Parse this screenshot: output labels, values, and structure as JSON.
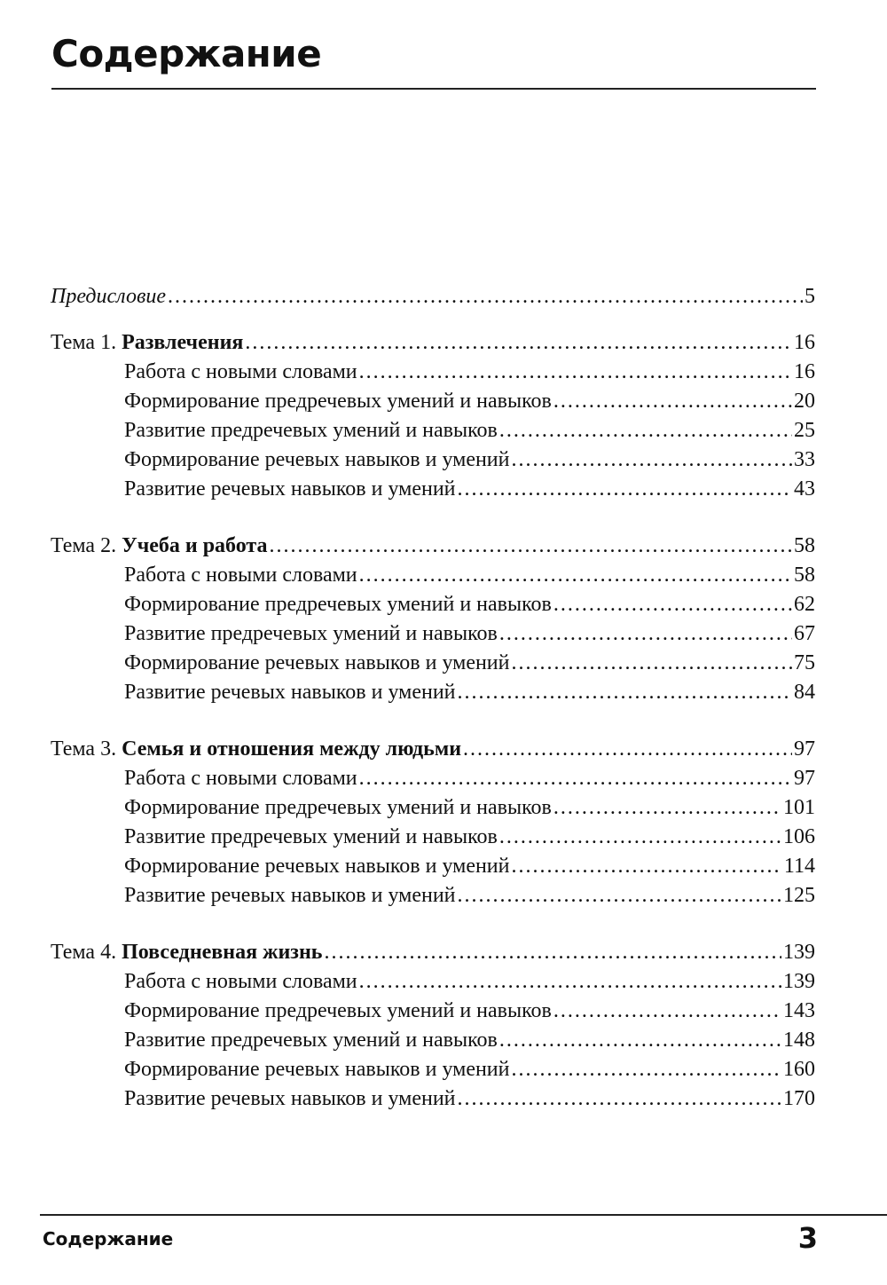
{
  "header": {
    "title": "Содержание"
  },
  "preface": {
    "label": "Предисловие",
    "page": "5"
  },
  "topics": [
    {
      "prefix": "Тема 1. ",
      "title": "Развлечения",
      "page": "16",
      "sections": [
        {
          "label": "Работа с новыми словами",
          "page": "16"
        },
        {
          "label": "Формирование предречевых умений и навыков",
          "page": "20"
        },
        {
          "label": "Развитие предречевых умений и навыков",
          "page": "25"
        },
        {
          "label": "Формирование речевых навыков и умений",
          "page": "33"
        },
        {
          "label": "Развитие речевых навыков и умений",
          "page": "43"
        }
      ]
    },
    {
      "prefix": "Тема 2. ",
      "title": "Учеба и работа",
      "page": "58",
      "sections": [
        {
          "label": "Работа с новыми словами",
          "page": "58"
        },
        {
          "label": "Формирование предречевых умений и навыков",
          "page": "62"
        },
        {
          "label": "Развитие предречевых умений и навыков",
          "page": "67"
        },
        {
          "label": "Формирование речевых навыков и умений",
          "page": "75"
        },
        {
          "label": "Развитие речевых навыков и умений",
          "page": "84"
        }
      ]
    },
    {
      "prefix": "Тема 3. ",
      "title": "Семья и отношения между людьми",
      "page": "97",
      "sections": [
        {
          "label": "Работа с новыми словами",
          "page": "97"
        },
        {
          "label": "Формирование предречевых умений и навыков",
          "page": "101"
        },
        {
          "label": "Развитие предречевых умений и навыков",
          "page": "106"
        },
        {
          "label": "Формирование речевых навыков и умений",
          "page": "114"
        },
        {
          "label": "Развитие речевых навыков и умений",
          "page": "125"
        }
      ]
    },
    {
      "prefix": "Тема 4. ",
      "title": "Повседневная жизнь",
      "page": "139",
      "sections": [
        {
          "label": "Работа с новыми словами",
          "page": "139"
        },
        {
          "label": "Формирование предречевых умений и навыков",
          "page": "143"
        },
        {
          "label": "Развитие предречевых умений и навыков",
          "page": "148"
        },
        {
          "label": "Формирование речевых навыков и умений",
          "page": "160"
        },
        {
          "label": "Развитие речевых навыков и умений",
          "page": "170"
        }
      ]
    }
  ],
  "footer": {
    "title": "Содержание",
    "page_number": "3"
  }
}
